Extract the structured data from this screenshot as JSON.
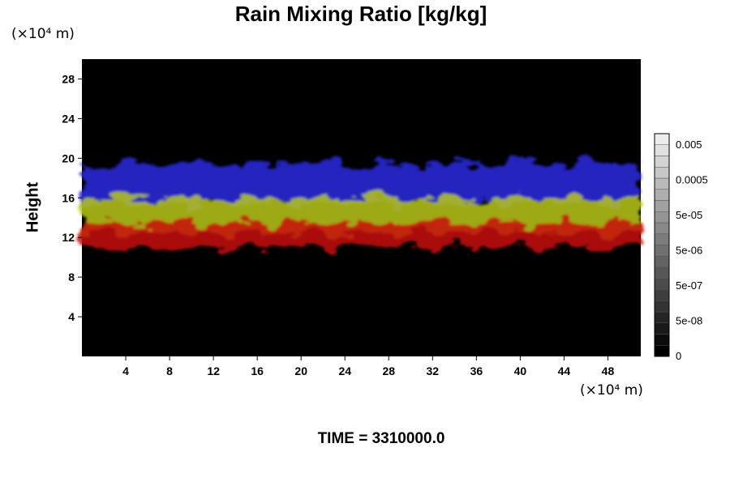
{
  "chart_data": {
    "type": "heatmap",
    "title": "Rain Mixing Ratio [kg/kg]",
    "ylabel": "Height",
    "y_unit": "(×10⁴ m)",
    "x_unit": "(×10⁴ m)",
    "footer": "TIME = 3310000.0",
    "xlim": [
      0,
      51
    ],
    "ylim": [
      0,
      30
    ],
    "x_ticks": [
      4,
      8,
      12,
      16,
      20,
      24,
      28,
      32,
      36,
      40,
      44,
      48
    ],
    "y_ticks": [
      4,
      8,
      12,
      16,
      20,
      24,
      28
    ],
    "background": "#000000",
    "layers": [
      {
        "color": "#2a2ae0",
        "y_range": [
          15.5,
          19.5
        ]
      },
      {
        "color": "#b8c81a",
        "y_range": [
          12.5,
          16
        ]
      },
      {
        "color": "#c81010",
        "y_range": [
          11,
          13.5
        ]
      }
    ],
    "colorbar": {
      "labels": [
        "0.005",
        "0.0005",
        "5e-05",
        "5e-06",
        "5e-07",
        "5e-08",
        "0"
      ],
      "levels": 20,
      "colors": {
        "low": "#000000",
        "high": "#ececec"
      }
    }
  }
}
